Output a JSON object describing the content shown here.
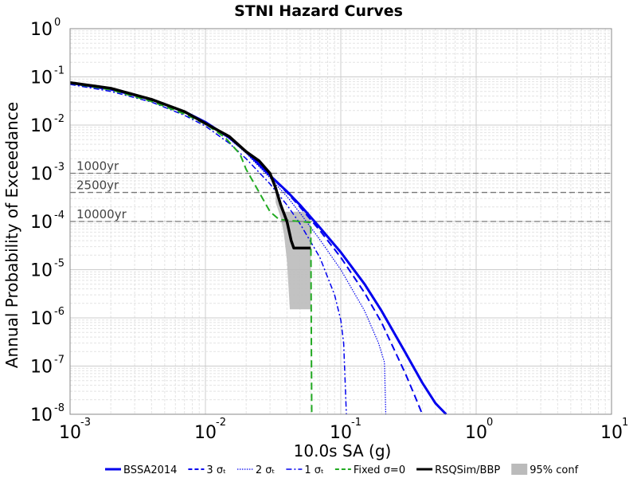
{
  "chart_data": {
    "type": "line",
    "title": "STNI Hazard Curves",
    "xlabel": "10.0s SA (g)",
    "ylabel": "Annual Probability of Exceedance",
    "x_scale": "log",
    "y_scale": "log",
    "xlim": [
      0.001,
      10
    ],
    "ylim": [
      1e-08,
      1
    ],
    "x_ticks": [
      {
        "value": 0.001,
        "base": "10",
        "exp": "-3"
      },
      {
        "value": 0.01,
        "base": "10",
        "exp": "-2"
      },
      {
        "value": 0.1,
        "base": "10",
        "exp": "-1"
      },
      {
        "value": 1,
        "base": "10",
        "exp": "0"
      },
      {
        "value": 10,
        "base": "10",
        "exp": "1"
      }
    ],
    "y_ticks": [
      {
        "value": 1,
        "base": "10",
        "exp": "0"
      },
      {
        "value": 0.1,
        "base": "10",
        "exp": "-1"
      },
      {
        "value": 0.01,
        "base": "10",
        "exp": "-2"
      },
      {
        "value": 0.001,
        "base": "10",
        "exp": "-3"
      },
      {
        "value": 0.0001,
        "base": "10",
        "exp": "-4"
      },
      {
        "value": 1e-05,
        "base": "10",
        "exp": "-5"
      },
      {
        "value": 1e-06,
        "base": "10",
        "exp": "-6"
      },
      {
        "value": 1e-07,
        "base": "10",
        "exp": "-7"
      },
      {
        "value": 1e-08,
        "base": "10",
        "exp": "-8"
      }
    ],
    "grid": true,
    "legend_position": "bottom",
    "reference_lines": [
      {
        "label": "1000yr",
        "y": 0.001
      },
      {
        "label": "2500yr",
        "y": 0.0004
      },
      {
        "label": "10000yr",
        "y": 0.0001
      }
    ],
    "series": [
      {
        "name": "BSSA2014",
        "color": "#0000ee",
        "style": "solid",
        "width": 3,
        "points": [
          [
            0.001,
            0.075
          ],
          [
            0.002,
            0.055
          ],
          [
            0.004,
            0.034
          ],
          [
            0.007,
            0.019
          ],
          [
            0.01,
            0.0115
          ],
          [
            0.015,
            0.0055
          ],
          [
            0.02,
            0.0028
          ],
          [
            0.03,
            0.0009
          ],
          [
            0.04,
            0.00042
          ],
          [
            0.05,
            0.00022
          ],
          [
            0.07,
            7.5e-05
          ],
          [
            0.1,
            2.3e-05
          ],
          [
            0.15,
            5e-06
          ],
          [
            0.2,
            1.4e-06
          ],
          [
            0.3,
            1.9e-07
          ],
          [
            0.4,
            4.5e-08
          ],
          [
            0.5,
            1.7e-08
          ],
          [
            0.6,
            1e-08
          ]
        ]
      },
      {
        "name": "3 σₜ",
        "color": "#0000ee",
        "style": "dashed",
        "width": 2,
        "points": [
          [
            0.001,
            0.075
          ],
          [
            0.002,
            0.055
          ],
          [
            0.004,
            0.034
          ],
          [
            0.007,
            0.019
          ],
          [
            0.01,
            0.0115
          ],
          [
            0.015,
            0.0055
          ],
          [
            0.02,
            0.0028
          ],
          [
            0.03,
            0.00088
          ],
          [
            0.04,
            0.0004
          ],
          [
            0.05,
            0.0002
          ],
          [
            0.07,
            6.5e-05
          ],
          [
            0.1,
            1.8e-05
          ],
          [
            0.15,
            3.3e-06
          ],
          [
            0.2,
            8e-07
          ],
          [
            0.3,
            7e-08
          ],
          [
            0.35,
            2.5e-08
          ],
          [
            0.4,
            1e-08
          ]
        ]
      },
      {
        "name": "2 σₜ",
        "color": "#0000ee",
        "style": "dotted",
        "width": 1.2,
        "points": [
          [
            0.001,
            0.074
          ],
          [
            0.002,
            0.054
          ],
          [
            0.004,
            0.033
          ],
          [
            0.007,
            0.018
          ],
          [
            0.01,
            0.011
          ],
          [
            0.015,
            0.0052
          ],
          [
            0.02,
            0.0026
          ],
          [
            0.03,
            0.0008
          ],
          [
            0.04,
            0.00033
          ],
          [
            0.05,
            0.00015
          ],
          [
            0.07,
            4.2e-05
          ],
          [
            0.1,
            1e-05
          ],
          [
            0.15,
            1.4e-06
          ],
          [
            0.19,
            3e-07
          ],
          [
            0.21,
            1.2e-07
          ],
          [
            0.215,
            1e-08
          ]
        ]
      },
      {
        "name": "1 σₜ",
        "color": "#0000ee",
        "style": "dashdot",
        "width": 1.5,
        "points": [
          [
            0.001,
            0.07
          ],
          [
            0.002,
            0.05
          ],
          [
            0.004,
            0.03
          ],
          [
            0.007,
            0.016
          ],
          [
            0.01,
            0.0095
          ],
          [
            0.015,
            0.0042
          ],
          [
            0.02,
            0.002
          ],
          [
            0.03,
            0.0006
          ],
          [
            0.04,
            0.00022
          ],
          [
            0.05,
            9e-05
          ],
          [
            0.07,
            1.8e-05
          ],
          [
            0.09,
            3e-06
          ],
          [
            0.1,
            9e-07
          ],
          [
            0.105,
            3e-07
          ],
          [
            0.11,
            1e-08
          ]
        ]
      },
      {
        "name": "Fixed σ=0",
        "color": "#22aa22",
        "style": "dashed",
        "width": 2,
        "points": [
          [
            0.001,
            0.074
          ],
          [
            0.002,
            0.054
          ],
          [
            0.004,
            0.031
          ],
          [
            0.007,
            0.017
          ],
          [
            0.01,
            0.0105
          ],
          [
            0.014,
            0.0055
          ],
          [
            0.018,
            0.0025
          ],
          [
            0.02,
            0.0012
          ],
          [
            0.025,
            0.0004
          ],
          [
            0.03,
            0.00016
          ],
          [
            0.035,
            0.00011
          ],
          [
            0.05,
            0.0001
          ],
          [
            0.06,
            9.5e-05
          ],
          [
            0.061,
            1e-08
          ]
        ]
      },
      {
        "name": "RSQSim/BBP",
        "color": "#000000",
        "style": "solid",
        "width": 3.5,
        "points": [
          [
            0.001,
            0.076
          ],
          [
            0.002,
            0.058
          ],
          [
            0.004,
            0.034
          ],
          [
            0.007,
            0.019
          ],
          [
            0.01,
            0.0108
          ],
          [
            0.015,
            0.0058
          ],
          [
            0.02,
            0.0028
          ],
          [
            0.025,
            0.0018
          ],
          [
            0.03,
            0.001
          ],
          [
            0.033,
            0.0005
          ],
          [
            0.036,
            0.00022
          ],
          [
            0.04,
            0.0001
          ],
          [
            0.043,
            4e-05
          ],
          [
            0.045,
            2.8e-05
          ],
          [
            0.06,
            2.8e-05
          ]
        ]
      }
    ],
    "confidence_band": {
      "name": "95% conf",
      "color": "#bbbbbb",
      "upper": [
        [
          0.033,
          0.00045
        ],
        [
          0.036,
          0.00022
        ],
        [
          0.038,
          0.00016
        ],
        [
          0.045,
          0.00016
        ],
        [
          0.058,
          0.00016
        ],
        [
          0.06,
          6e-05
        ],
        [
          0.06,
          1.5e-06
        ]
      ],
      "lower": [
        [
          0.033,
          0.00025
        ],
        [
          0.036,
          0.00012
        ],
        [
          0.038,
          5.5e-05
        ],
        [
          0.04,
          1.5e-05
        ],
        [
          0.042,
          1.5e-06
        ]
      ]
    }
  }
}
